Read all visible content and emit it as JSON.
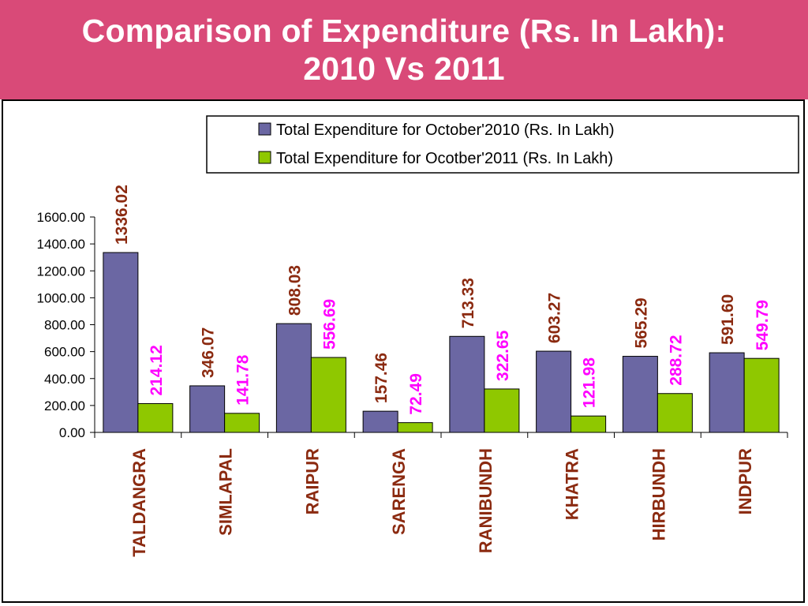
{
  "slide": {
    "title_line1": "Comparison of Expenditure (Rs. In Lakh):",
    "title_line2": "2010 Vs 2011"
  },
  "colors": {
    "banner": "#d94a78",
    "series_2010": "#6b67a3",
    "series_2011": "#8fc800",
    "label_2010": "#8b2a10",
    "label_2011": "#ff00ff",
    "category_label": "#8b2a10"
  },
  "chart_data": {
    "type": "bar",
    "title": "",
    "xlabel": "",
    "ylabel": "",
    "ylim": [
      0,
      1600
    ],
    "y_ticks": [
      "0.00",
      "200.00",
      "400.00",
      "600.00",
      "800.00",
      "1000.00",
      "1200.00",
      "1400.00",
      "1600.00"
    ],
    "legend_position": "top-right",
    "grid": false,
    "categories": [
      "TALDANGRA",
      "SIMLAPAL",
      "RAIPUR",
      "SARENGA",
      "RANIBUNDH",
      "KHATRA",
      "HIRBUNDH",
      "INDPUR"
    ],
    "series": [
      {
        "name": "Total Expenditure for October'2010 (Rs. In Lakh)",
        "values": [
          1336.02,
          346.07,
          808.03,
          157.46,
          713.33,
          603.27,
          565.29,
          591.6
        ],
        "labels": [
          "1336.02",
          "346.07",
          "808.03",
          "157.46",
          "713.33",
          "603.27",
          "565.29",
          "591.60"
        ]
      },
      {
        "name": "Total Expenditure for Ocotber'2011 (Rs. In Lakh)",
        "values": [
          214.12,
          141.78,
          556.69,
          72.49,
          322.65,
          121.98,
          288.72,
          549.79
        ],
        "labels": [
          "214.12",
          "141.78",
          "556.69",
          "72.49",
          "322.65",
          "121.98",
          "288.72",
          "549.79"
        ]
      }
    ]
  }
}
